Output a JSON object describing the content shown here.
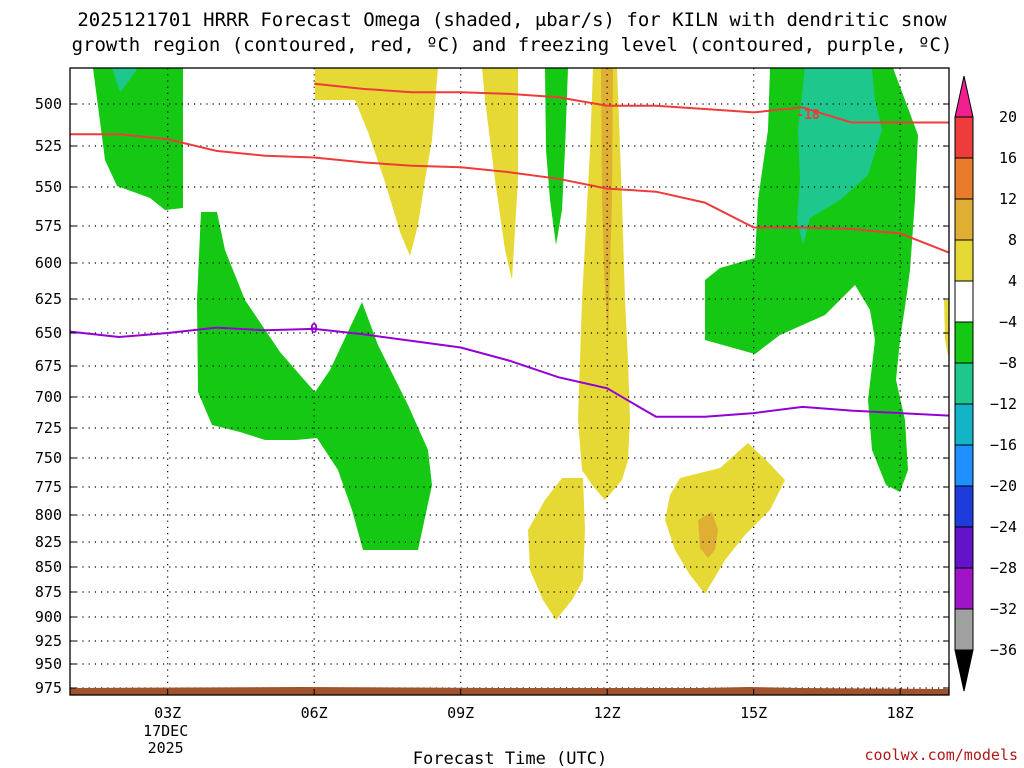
{
  "title": {
    "line1": "2025121701 HRRR Forecast Omega (shaded, μbar/s) for KILN with dendritic snow",
    "line2": "growth region (contoured, red, ºC) and freezing level (contoured, purple, ºC)"
  },
  "credit": "coolwx.com/models",
  "chart_data": {
    "type": "contour",
    "xlabel": "Forecast Time (UTC)",
    "x_ticks": [
      {
        "hour": 3,
        "label": "03Z"
      },
      {
        "hour": 6,
        "label": "06Z"
      },
      {
        "hour": 9,
        "label": "09Z"
      },
      {
        "hour": 12,
        "label": "12Z"
      },
      {
        "hour": 15,
        "label": "15Z"
      },
      {
        "hour": 18,
        "label": "18Z"
      }
    ],
    "date_label": [
      "17DEC",
      "2025"
    ],
    "xlim": [
      1,
      19
    ],
    "y_levels_mb": [
      500,
      525,
      550,
      575,
      600,
      625,
      650,
      675,
      700,
      725,
      750,
      775,
      800,
      825,
      850,
      875,
      900,
      925,
      950,
      975
    ],
    "colorbar": {
      "labels": [
        "20",
        "16",
        "12",
        "8",
        "4",
        "−4",
        "−8",
        "−12",
        "−16",
        "−20",
        "−24",
        "−28",
        "−32",
        "−36"
      ],
      "colors": [
        "#f02090",
        "#ee3b3b",
        "#e87c2a",
        "#dfaf34",
        "#e6d935",
        "#ffffff",
        "#14c814",
        "#1ec88c",
        "#14b4c8",
        "#1e90ff",
        "#1e3cdc",
        "#6414c8",
        "#a014c8",
        "#a0a0a0",
        "#000000"
      ]
    },
    "dgz_contour_labels": [
      "-18"
    ],
    "freezing_contour_labels": [
      "0"
    ],
    "dgz_top": [
      [
        1,
        518
      ],
      [
        2,
        518
      ],
      [
        3,
        521
      ],
      [
        4,
        528
      ],
      [
        5,
        531
      ],
      [
        6,
        532
      ],
      [
        7,
        535
      ],
      [
        8,
        537
      ],
      [
        9,
        538
      ],
      [
        10,
        541
      ],
      [
        11,
        545
      ],
      [
        12,
        551
      ],
      [
        13,
        553
      ],
      [
        14,
        560
      ],
      [
        15,
        576
      ],
      [
        16,
        576
      ],
      [
        17,
        577
      ],
      [
        18,
        580
      ],
      [
        19,
        593
      ]
    ],
    "dgz_upper": [
      [
        6,
        488
      ],
      [
        7,
        491
      ],
      [
        8,
        493
      ],
      [
        9,
        493
      ],
      [
        10,
        494
      ],
      [
        11,
        496
      ],
      [
        12,
        501
      ],
      [
        13,
        501
      ],
      [
        14,
        503
      ],
      [
        15,
        505
      ],
      [
        16,
        502
      ],
      [
        17,
        511
      ],
      [
        18,
        511
      ],
      [
        19,
        511
      ]
    ],
    "freezing_level": [
      [
        1,
        649
      ],
      [
        2,
        653
      ],
      [
        3,
        650
      ],
      [
        4,
        646
      ],
      [
        5,
        648
      ],
      [
        6,
        647
      ],
      [
        7,
        651
      ],
      [
        8,
        656
      ],
      [
        9,
        661
      ],
      [
        10,
        671
      ],
      [
        11,
        684
      ],
      [
        12,
        693
      ],
      [
        13,
        716
      ],
      [
        14,
        716
      ],
      [
        15,
        713
      ],
      [
        16,
        708
      ],
      [
        17,
        711
      ],
      [
        18,
        713
      ],
      [
        19,
        715
      ]
    ]
  }
}
